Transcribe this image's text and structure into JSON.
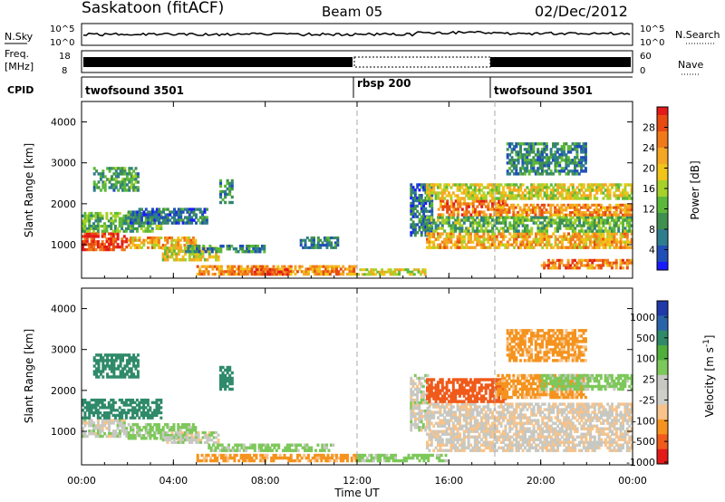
{
  "header": {
    "title": "Saskatoon (fitACF)",
    "beam": "Beam 05",
    "date": "02/Dec/2012"
  },
  "aux_panels": {
    "nsky": {
      "label": "N.Sky",
      "left_ticks": [
        "10^5",
        "10^0"
      ],
      "right_label": "N.Search",
      "right_ticks": [
        "10^5",
        "10^0"
      ]
    },
    "freq": {
      "label_lines": [
        "Freq.",
        "[MHz]"
      ],
      "left_ticks": [
        "18",
        "8"
      ],
      "right_label": "Nave",
      "right_ticks": [
        "60",
        "0"
      ]
    },
    "cpid": {
      "label": "CPID",
      "segments": [
        {
          "name": "twofsound 3501",
          "start_hour": 0
        },
        {
          "name": "rbsp 200",
          "start_hour": 12
        },
        {
          "name": "twofsound 3501",
          "start_hour": 18
        }
      ]
    }
  },
  "colors": {
    "power_scale": [
      "#1a1aff",
      "#1f4fb8",
      "#2e7d8c",
      "#3f8f4f",
      "#5cb83a",
      "#a6d12a",
      "#f0c419",
      "#f5a623",
      "#f07a1a",
      "#e84a12",
      "#e41a1a"
    ],
    "velocity_scale": [
      "#e41a1a",
      "#f05a1a",
      "#f5931e",
      "#f7c38a",
      "#cfcfc9",
      "#c8c8c2",
      "#7dc85a",
      "#4fae3c",
      "#2f8a6a",
      "#2a64a8",
      "#1f3aa8"
    ],
    "marker": "#aaaaaa"
  },
  "chart_data": [
    {
      "type": "heatmap",
      "panel": "power",
      "ylabel": "Slant Range [km]",
      "ylim": [
        180,
        4500
      ],
      "yticks": [
        1000,
        2000,
        3000,
        4000
      ],
      "xlim": [
        0,
        24
      ],
      "colorbar": {
        "label": "Power [dB]",
        "range": [
          0,
          32
        ],
        "ticks": [
          4,
          8,
          12,
          16,
          20,
          24,
          28
        ]
      },
      "bands": [
        {
          "t0": 0.0,
          "t1": 2.0,
          "r0": 850,
          "r1": 1300,
          "v": 30
        },
        {
          "t0": 0.0,
          "t1": 3.5,
          "r0": 1300,
          "r1": 1800,
          "v": 12
        },
        {
          "t0": 2.0,
          "t1": 5.0,
          "r0": 900,
          "r1": 1200,
          "v": 22
        },
        {
          "t0": 2.0,
          "t1": 5.5,
          "r0": 1500,
          "r1": 1900,
          "v": 6
        },
        {
          "t0": 0.5,
          "t1": 2.5,
          "r0": 2300,
          "r1": 2900,
          "v": 10
        },
        {
          "t0": 3.5,
          "t1": 6.0,
          "r0": 600,
          "r1": 950,
          "v": 18
        },
        {
          "t0": 4.5,
          "t1": 8.0,
          "r0": 800,
          "r1": 1000,
          "v": 8
        },
        {
          "t0": 6.0,
          "t1": 6.6,
          "r0": 2000,
          "r1": 2600,
          "v": 8
        },
        {
          "t0": 5.0,
          "t1": 12.0,
          "r0": 250,
          "r1": 500,
          "v": 24
        },
        {
          "t0": 7.5,
          "t1": 9.0,
          "r0": 250,
          "r1": 420,
          "v": 29
        },
        {
          "t0": 9.5,
          "t1": 11.2,
          "r0": 900,
          "r1": 1200,
          "v": 8
        },
        {
          "t0": 12.0,
          "t1": 15.0,
          "r0": 250,
          "r1": 420,
          "v": 18
        },
        {
          "t0": 14.3,
          "t1": 15.3,
          "r0": 1200,
          "r1": 2500,
          "v": 6
        },
        {
          "t0": 15.0,
          "t1": 24.0,
          "r0": 900,
          "r1": 1300,
          "v": 22
        },
        {
          "t0": 15.0,
          "t1": 24.0,
          "r0": 1300,
          "r1": 1700,
          "v": 12
        },
        {
          "t0": 15.5,
          "t1": 18.5,
          "r0": 1700,
          "r1": 2100,
          "v": 26
        },
        {
          "t0": 15.0,
          "t1": 24.0,
          "r0": 2100,
          "r1": 2500,
          "v": 18
        },
        {
          "t0": 18.0,
          "t1": 24.0,
          "r0": 1700,
          "r1": 2000,
          "v": 24
        },
        {
          "t0": 18.5,
          "t1": 22.0,
          "r0": 2700,
          "r1": 3500,
          "v": 8
        },
        {
          "t0": 20.0,
          "t1": 24.0,
          "r0": 400,
          "r1": 650,
          "v": 26
        }
      ]
    },
    {
      "type": "heatmap",
      "panel": "velocity",
      "ylabel": "Slant Range [km]",
      "ylim": [
        180,
        4500
      ],
      "yticks": [
        1000,
        2000,
        3000,
        4000
      ],
      "xlim": [
        0,
        24
      ],
      "xticks": [
        "00:00",
        "04:00",
        "08:00",
        "12:00",
        "16:00",
        "20:00",
        "00:00"
      ],
      "xlabel": "Time UT",
      "colorbar": {
        "label": "Velocity [m s^-1]",
        "ticks": [
          "1000",
          "500",
          "100",
          "25",
          "-25",
          "-100",
          "-500",
          "-1000"
        ]
      },
      "bands": [
        {
          "t0": 0.0,
          "t1": 2.0,
          "r0": 850,
          "r1": 1300,
          "v": 25
        },
        {
          "t0": 0.0,
          "t1": 3.5,
          "r0": 1300,
          "r1": 1800,
          "v": 500
        },
        {
          "t0": 2.0,
          "t1": 5.0,
          "r0": 800,
          "r1": 1200,
          "v": 100
        },
        {
          "t0": 0.5,
          "t1": 2.5,
          "r0": 2300,
          "r1": 2900,
          "v": 500
        },
        {
          "t0": 3.5,
          "t1": 6.0,
          "r0": 700,
          "r1": 1000,
          "v": 25
        },
        {
          "t0": 5.0,
          "t1": 12.0,
          "r0": 250,
          "r1": 450,
          "v": -100
        },
        {
          "t0": 5.5,
          "t1": 11.0,
          "r0": 500,
          "r1": 700,
          "v": 100
        },
        {
          "t0": 6.0,
          "t1": 6.6,
          "r0": 2000,
          "r1": 2600,
          "v": 500
        },
        {
          "t0": 12.0,
          "t1": 16.0,
          "r0": 250,
          "r1": 450,
          "v": 100
        },
        {
          "t0": 14.3,
          "t1": 15.2,
          "r0": 1000,
          "r1": 2400,
          "v": 25
        },
        {
          "t0": 15.0,
          "t1": 24.0,
          "r0": 500,
          "r1": 1700,
          "v": 0
        },
        {
          "t0": 15.0,
          "t1": 18.5,
          "r0": 1700,
          "r1": 2300,
          "v": -500
        },
        {
          "t0": 18.0,
          "t1": 22.0,
          "r0": 1800,
          "r1": 2400,
          "v": -100
        },
        {
          "t0": 20.0,
          "t1": 24.0,
          "r0": 2000,
          "r1": 2400,
          "v": 100
        },
        {
          "t0": 18.5,
          "t1": 22.0,
          "r0": 2700,
          "r1": 3500,
          "v": -100
        }
      ]
    }
  ]
}
